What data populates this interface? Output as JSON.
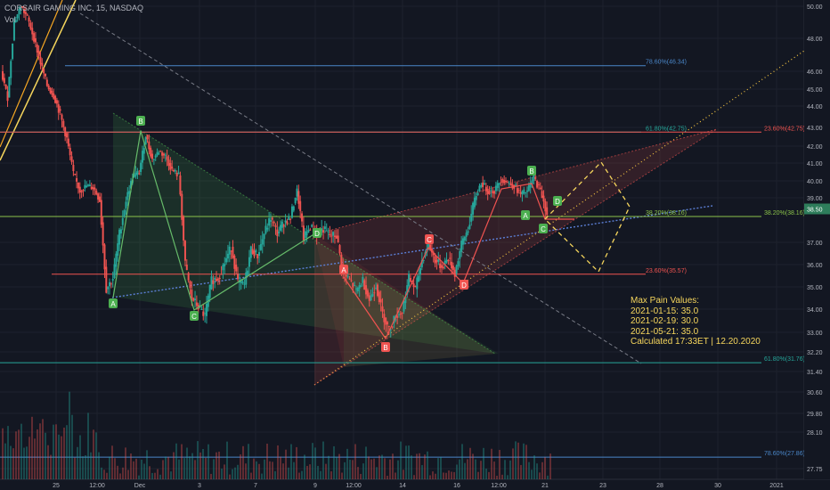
{
  "header": {
    "title": "CORSAIR GAMING INC, 15, NASDAQ",
    "volume_label": "Vol"
  },
  "max_pain": {
    "title": "Max Pain Values:",
    "lines": [
      "2021-01-15: 35.0",
      "2021-02-19: 30.0",
      "2021-05-21: 35.0"
    ],
    "footer": "Calculated 17:33ET | 12.20.2020"
  },
  "chart_data": {
    "type": "candlestick",
    "symbol": "CORSAIR GAMING INC",
    "interval": "15",
    "exchange": "NASDAQ",
    "ylim": [
      27.75,
      50.0
    ],
    "y_ticks": [
      "50.00",
      "48.00",
      "46.00",
      "45.00",
      "44.00",
      "43.00",
      "42.00",
      "41.00",
      "40.00",
      "39.00",
      "37.00",
      "36.00",
      "35.00",
      "34.00",
      "33.00",
      "32.20",
      "31.40",
      "30.60",
      "29.80",
      "28.10",
      "27.75"
    ],
    "x_ticks": [
      "25",
      "12:00",
      "Dec",
      "3",
      "7",
      "9",
      "12:00",
      "14",
      "16",
      "12:00",
      "21",
      "23",
      "28",
      "30",
      "2021"
    ],
    "price_path": [
      46,
      44.5,
      49,
      50,
      49.3,
      48,
      46.5,
      45.2,
      44.6,
      43.6,
      42.4,
      40.4,
      39.4,
      39.7,
      39.6,
      38.9,
      34.9,
      35.4,
      37.4,
      38.9,
      40.2,
      40.5,
      42.6,
      41.2,
      41.7,
      41.4,
      40.6,
      40.3,
      36,
      34.5,
      34.1,
      33.7,
      35.3,
      35.4,
      36.1,
      36.8,
      35.2,
      35.1,
      36.7,
      36.4,
      37.4,
      38.1,
      37.4,
      37.9,
      38.1,
      39.4,
      37.2,
      37.7,
      37.4,
      37.6,
      37.3,
      37.3,
      35.6,
      35.3,
      34.8,
      35.3,
      34.4,
      35.1,
      33.8,
      33.1,
      33.7,
      33.9,
      35.4,
      34.9,
      36.2,
      36.9,
      36.2,
      35.9,
      36.3,
      35.6,
      36.9,
      37.6,
      38.9,
      39.9,
      39.4,
      39.4,
      40.1,
      39.9,
      39.7,
      39.2,
      39.4,
      40.2,
      39.4,
      38.3
    ],
    "current_price": "38.50",
    "fib_levels": [
      {
        "label": "78.60%(46.34)",
        "value": 46.34,
        "color": "#4a86c8"
      },
      {
        "label": "61.80%(42.75)",
        "value": 42.75,
        "color": "#26a69a"
      },
      {
        "label": "23.60%(42.75)",
        "value": 42.75,
        "color": "#ef5350"
      },
      {
        "label": "38.20%(38.16)",
        "value": 38.16,
        "color": "#8bc34a"
      },
      {
        "label": "38.20%(38.16)",
        "value": 38.16,
        "color": "#8bc34a"
      },
      {
        "label": "23.60%(35.57)",
        "value": 35.57,
        "color": "#ef5350"
      },
      {
        "label": "61.80%(31.76)",
        "value": 31.76,
        "color": "#26a69a"
      },
      {
        "label": "78.60%(27.86)",
        "value": 27.86,
        "color": "#4a86c8"
      }
    ],
    "pattern_points": [
      "A",
      "B",
      "C",
      "D",
      "A",
      "B",
      "C",
      "D",
      "A",
      "B",
      "C",
      "D"
    ],
    "colors": {
      "up": "#26a69a",
      "down": "#ef5350",
      "background": "#131722",
      "grid": "#1e222d",
      "text": "#b2b5be",
      "max_pain": "#f5d55c"
    }
  }
}
